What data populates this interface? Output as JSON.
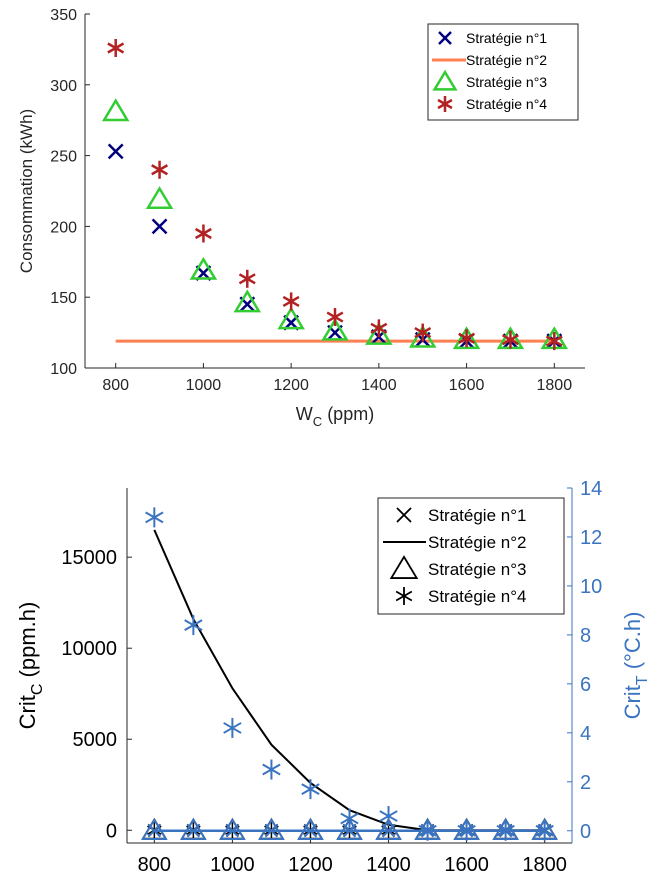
{
  "chart_data": [
    {
      "type": "scatter",
      "xlabel": "W",
      "xlabel_sub": "C",
      "xlabel_unit": " (ppm)",
      "ylabel": "Consommation (kWh)",
      "xlim": [
        730,
        1870
      ],
      "ylim": [
        100,
        350
      ],
      "xticks": [
        800,
        1000,
        1200,
        1400,
        1600,
        1800
      ],
      "yticks": [
        100,
        150,
        200,
        250,
        300,
        350
      ],
      "legend_position": "top-right",
      "x": [
        800,
        900,
        1000,
        1100,
        1200,
        1300,
        1400,
        1500,
        1600,
        1700,
        1800
      ],
      "series": [
        {
          "name": "Stratégie n°1",
          "marker": "x",
          "color": "#00007f",
          "values": [
            253,
            200,
            167,
            145,
            132,
            125,
            122,
            120,
            119,
            119,
            119
          ]
        },
        {
          "name": "Stratégie n°2",
          "marker": "line",
          "color": "#ff7f50",
          "values": [
            119,
            119,
            119,
            119,
            119,
            119,
            119,
            119,
            119,
            119,
            119
          ]
        },
        {
          "name": "Stratégie n°3",
          "marker": "triangle",
          "color": "#33cc33",
          "values": [
            281,
            219,
            169,
            146,
            134,
            126,
            123,
            121,
            120,
            120,
            120
          ]
        },
        {
          "name": "Stratégie n°4",
          "marker": "asterisk",
          "color": "#b22222",
          "values": [
            326,
            240,
            195,
            163,
            147,
            136,
            128,
            125,
            121,
            120,
            119
          ]
        }
      ]
    },
    {
      "type": "line",
      "ylabel": "Crit",
      "ylabel_sub": "C",
      "ylabel_unit": " (ppm.h)",
      "y2label": "Crit",
      "y2label_sub": "T",
      "y2label_unit": " (°C.h)",
      "xlim": [
        730,
        1870
      ],
      "ylim": [
        -700,
        18800
      ],
      "y2lim": [
        -0.5,
        14
      ],
      "xticks": [
        800,
        1000,
        1200,
        1400,
        1600,
        1800
      ],
      "yticks": [
        0,
        5000,
        10000,
        15000
      ],
      "y2ticks": [
        0,
        2,
        4,
        6,
        8,
        10,
        12,
        14
      ],
      "right_axis_color": "#3a73c0",
      "legend_position": "top-right",
      "x": [
        800,
        900,
        1000,
        1100,
        1200,
        1300,
        1400,
        1500,
        1600,
        1700,
        1800
      ],
      "series": [
        {
          "name": "Stratégie n°1",
          "marker": "x",
          "axis": "left",
          "values": [
            0,
            0,
            0,
            0,
            0,
            0,
            0,
            0,
            0,
            0,
            0
          ]
        },
        {
          "name": "Stratégie n°2",
          "marker": "line",
          "axis": "left",
          "values": [
            16500,
            11600,
            7800,
            4700,
            2600,
            1100,
            300,
            0,
            0,
            0,
            0
          ]
        },
        {
          "name": "Stratégie n°3",
          "marker": "triangle",
          "axis": "left",
          "values": [
            0,
            0,
            0,
            0,
            0,
            0,
            0,
            0,
            0,
            0,
            0
          ]
        },
        {
          "name": "Stratégie n°4",
          "marker": "asterisk",
          "axis": "left",
          "values": [
            0,
            0,
            0,
            0,
            0,
            0,
            0,
            0,
            0,
            0,
            0
          ]
        },
        {
          "name": "",
          "marker": "asterisk",
          "axis": "right",
          "color": "#3a73c0",
          "values": [
            12.8,
            8.4,
            4.2,
            2.5,
            1.7,
            0.5,
            0.6,
            0,
            0,
            0,
            0
          ]
        },
        {
          "name": "",
          "marker": "line",
          "axis": "right",
          "color": "#3a73c0",
          "values": [
            0,
            0,
            0,
            0,
            0,
            0,
            0,
            0,
            0,
            0,
            0
          ]
        }
      ]
    }
  ]
}
